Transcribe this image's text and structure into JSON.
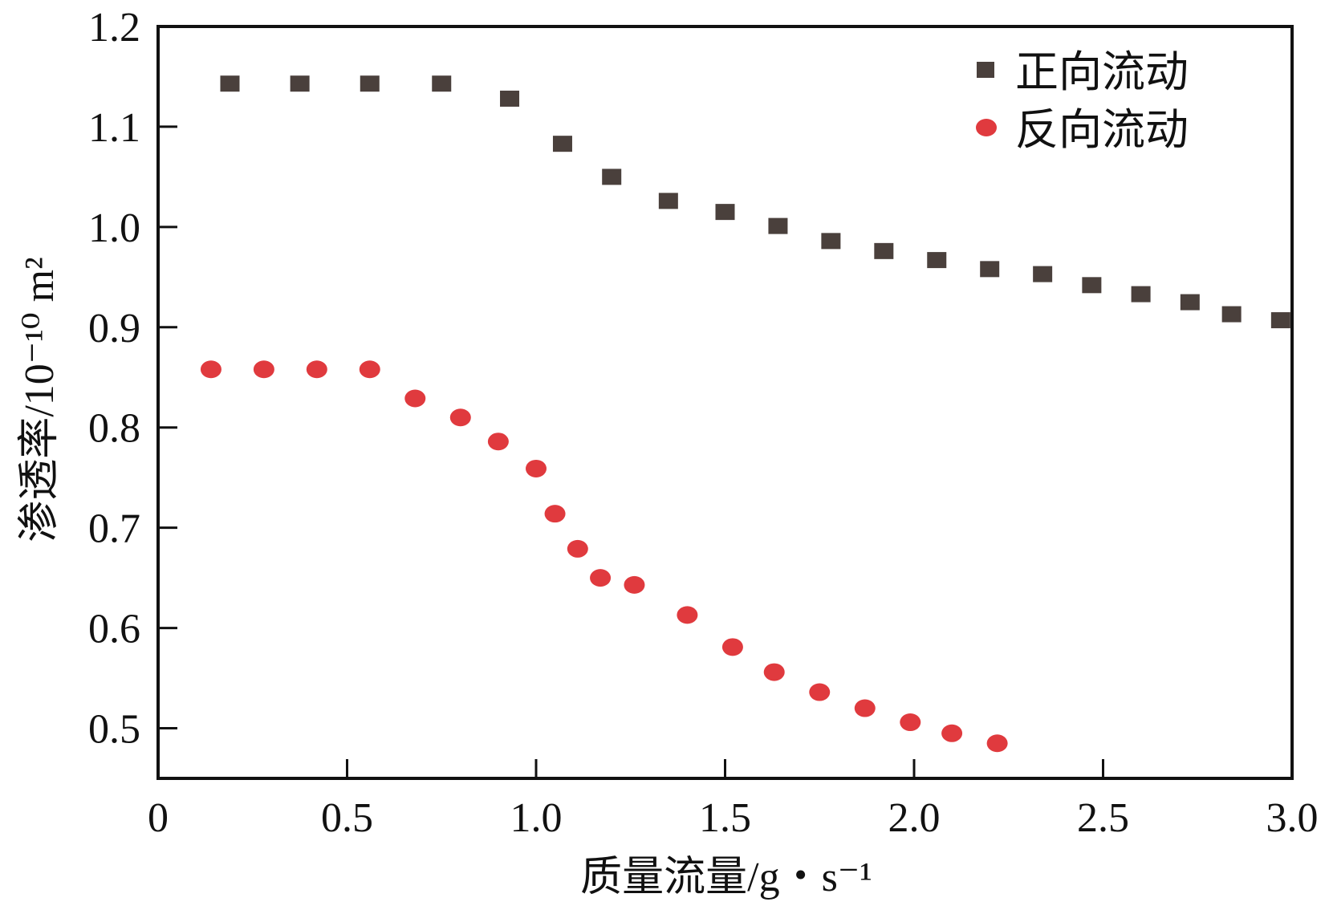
{
  "chart_data": {
    "type": "scatter",
    "title": "",
    "xlabel": "质量流量/g・s⁻¹",
    "ylabel": "渗透率/10⁻¹⁰ m²",
    "xlim": [
      0,
      3.0
    ],
    "ylim": [
      0.45,
      1.2
    ],
    "xticks": [
      "0",
      "0.5",
      "1.0",
      "1.5",
      "2.0",
      "2.5",
      "3.0"
    ],
    "yticks": [
      "0.5",
      "0.6",
      "0.7",
      "0.8",
      "0.9",
      "1.0",
      "1.1",
      "1.2"
    ],
    "grid": false,
    "legend": "top-right",
    "series": [
      {
        "name": "正向流动",
        "marker": "square",
        "color": "#4a403c",
        "x": [
          0.19,
          0.375,
          0.56,
          0.75,
          0.93,
          1.07,
          1.2,
          1.35,
          1.5,
          1.64,
          1.78,
          1.92,
          2.06,
          2.2,
          2.34,
          2.47,
          2.6,
          2.73,
          2.84,
          2.97
        ],
        "y": [
          1.143,
          1.143,
          1.143,
          1.143,
          1.128,
          1.083,
          1.05,
          1.026,
          1.015,
          1.001,
          0.986,
          0.976,
          0.967,
          0.958,
          0.953,
          0.942,
          0.933,
          0.925,
          0.913,
          0.907
        ]
      },
      {
        "name": "反向流动",
        "marker": "circle",
        "color": "#e03a3e",
        "x": [
          0.14,
          0.28,
          0.42,
          0.56,
          0.68,
          0.8,
          0.9,
          1.0,
          1.05,
          1.11,
          1.17,
          1.26,
          1.4,
          1.52,
          1.63,
          1.75,
          1.87,
          1.99,
          2.1,
          2.22
        ],
        "y": [
          0.858,
          0.858,
          0.858,
          0.858,
          0.829,
          0.81,
          0.786,
          0.759,
          0.714,
          0.679,
          0.65,
          0.643,
          0.613,
          0.581,
          0.556,
          0.536,
          0.52,
          0.506,
          0.495,
          0.485
        ]
      }
    ]
  }
}
